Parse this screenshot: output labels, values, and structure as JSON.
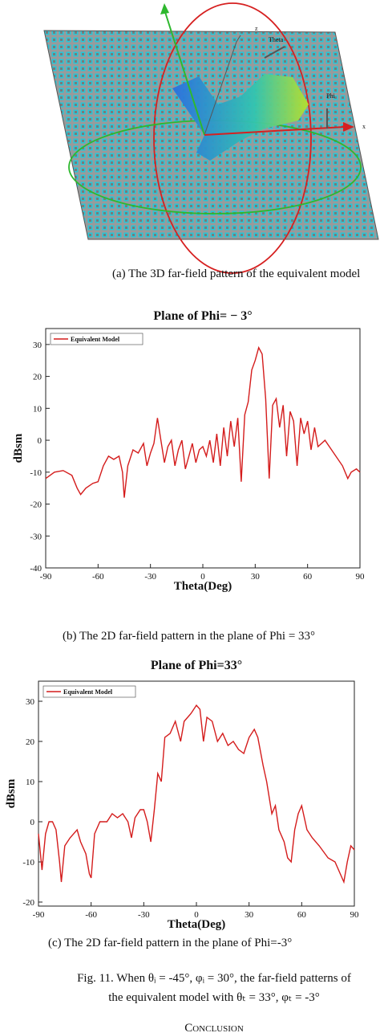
{
  "figure": {
    "image_labels": {
      "z": "z",
      "theta": "Theta",
      "phi": "Phi",
      "x": "x"
    },
    "caption_a": "(a) The 3D far-field pattern of the equivalent model",
    "caption_b": "(b) The 2D far-field pattern in the plane of Phi = 33°",
    "caption_c": "(c) The 2D far-field pattern in the plane of Phi=-3°",
    "fig_caption": [
      "Fig. 11. When θᵢ = -45°, φᵢ = 30°, the far-field patterns of",
      "the equivalent model with θₜ = 33°, φₜ = -3°"
    ],
    "section": "Conclusion"
  },
  "chart_data": [
    {
      "type": "line",
      "title": "Plane of Phi= − 3°",
      "x_label": "Theta(Deg)",
      "y_label": "dBsm",
      "x": [
        -90,
        -85,
        -80,
        -75,
        -72,
        -70,
        -67,
        -63,
        -60,
        -57,
        -54,
        -51,
        -48,
        -46,
        -45,
        -43,
        -40,
        -37,
        -34,
        -32,
        -30,
        -28,
        -26,
        -24,
        -22,
        -20,
        -18,
        -16,
        -14,
        -12,
        -10,
        -8,
        -6,
        -4,
        -2,
        0,
        2,
        4,
        6,
        8,
        10,
        12,
        14,
        16,
        18,
        20,
        22,
        24,
        26,
        28,
        30,
        32,
        34,
        36,
        38,
        40,
        42,
        44,
        46,
        48,
        50,
        52,
        54,
        56,
        58,
        60,
        62,
        64,
        66,
        70,
        75,
        80,
        83,
        85,
        88,
        90
      ],
      "series": [
        {
          "name": "Equivalent Model",
          "color": "#d41c1c",
          "values": [
            -12,
            -10,
            -9.5,
            -11,
            -15,
            -17,
            -15,
            -13.5,
            -13,
            -8,
            -5,
            -6,
            -5,
            -10,
            -18,
            -8,
            -3,
            -4,
            -1,
            -8,
            -4,
            -1,
            7,
            0,
            -7,
            -2,
            0,
            -8,
            -3,
            0,
            -9,
            -5,
            -1,
            -7,
            -3,
            -2,
            -5,
            0,
            -7,
            2,
            -8,
            4,
            -5,
            6,
            -2,
            7,
            -13,
            8,
            12,
            22,
            25,
            29,
            27,
            13,
            -12,
            11,
            13,
            4,
            11,
            -5,
            9,
            6,
            -8,
            7,
            2,
            6,
            -3,
            4,
            -2,
            0,
            -4,
            -8,
            -12,
            -10,
            -9,
            -10
          ]
        }
      ],
      "xlim": [
        -90,
        90
      ],
      "xticks": [
        -90,
        -60,
        -30,
        0,
        30,
        60,
        90
      ],
      "ylim": [
        -40,
        35
      ],
      "yticks": [
        30,
        20,
        10,
        0,
        -10,
        -20,
        -30,
        -40
      ],
      "legend": "upper left"
    },
    {
      "type": "line",
      "title": "Plane of Phi=33°",
      "x_label": "Theta(Deg)",
      "y_label": "dBsm",
      "x": [
        -90,
        -88,
        -86,
        -84,
        -82,
        -80,
        -78,
        -77,
        -75,
        -72,
        -68,
        -66,
        -63,
        -61,
        -60,
        -58,
        -55,
        -51,
        -48,
        -45,
        -42,
        -39,
        -37,
        -35,
        -32,
        -30,
        -28,
        -26,
        -24,
        -22,
        -20,
        -18,
        -15,
        -12,
        -9,
        -7,
        -5,
        -3,
        0,
        2,
        4,
        6,
        9,
        12,
        15,
        18,
        21,
        24,
        27,
        30,
        33,
        35,
        38,
        40,
        43,
        45,
        47,
        50,
        52,
        54,
        56,
        58,
        60,
        63,
        66,
        70,
        75,
        79,
        82,
        84,
        86,
        88,
        90
      ],
      "series": [
        {
          "name": "Equivalent Model",
          "color": "#d41c1c",
          "values": [
            -3,
            -12,
            -3,
            0,
            0,
            -2,
            -10,
            -15,
            -6,
            -4,
            -2,
            -5,
            -8,
            -13,
            -14,
            -3,
            0,
            0,
            2,
            1,
            2,
            0,
            -4,
            1,
            3,
            3,
            0,
            -5,
            3,
            12,
            10,
            21,
            22,
            25,
            20,
            25,
            26,
            27,
            29,
            28,
            20,
            26,
            25,
            20,
            22,
            19,
            20,
            18,
            17,
            21,
            23,
            21,
            14,
            10,
            2,
            4,
            -2,
            -5,
            -9,
            -10,
            -2,
            2,
            4,
            -2,
            -4,
            -6,
            -9,
            -10,
            -13,
            -15,
            -10,
            -6,
            -7
          ]
        }
      ],
      "xlim": [
        -90,
        90
      ],
      "xticks": [
        -90,
        -60,
        -30,
        0,
        30,
        60,
        90
      ],
      "ylim": [
        -21,
        35
      ],
      "yticks": [
        30,
        20,
        10,
        0,
        -10,
        -20
      ],
      "legend": "upper left"
    }
  ]
}
